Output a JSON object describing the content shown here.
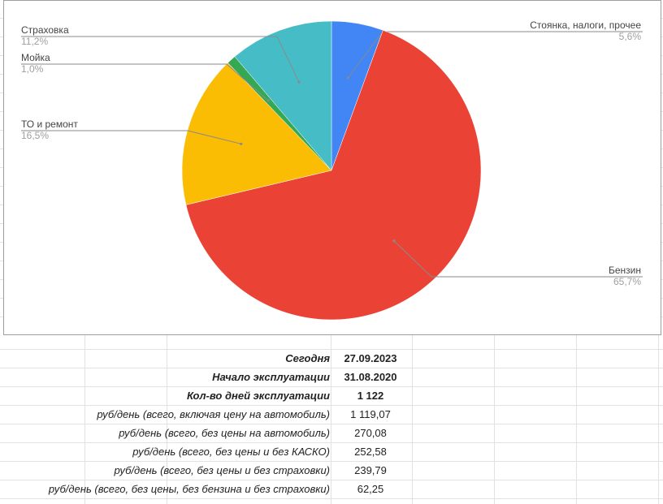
{
  "chart_data": {
    "type": "pie",
    "slices": [
      {
        "label": "Стоянка, налоги, прочее",
        "value": 5.6,
        "pct_text": "5,6%",
        "color": "#4285f4"
      },
      {
        "label": "Бензин",
        "value": 65.7,
        "pct_text": "65,7%",
        "color": "#ea4335"
      },
      {
        "label": "ТО и ремонт",
        "value": 16.5,
        "pct_text": "16,5%",
        "color": "#fbbc04"
      },
      {
        "label": "Мойка",
        "value": 1.0,
        "pct_text": "1,0%",
        "color": "#34a853"
      },
      {
        "label": "Страховка",
        "value": 11.2,
        "pct_text": "11,2%",
        "color": "#46bdc6"
      }
    ],
    "legend": "labels-with-leader-lines"
  },
  "stats": [
    {
      "label": "Сегодня",
      "value": "27.09.2023",
      "bold": true
    },
    {
      "label": "Начало эксплуатации",
      "value": "31.08.2020",
      "bold": true
    },
    {
      "label": "Кол-во дней эксплуатации",
      "value": "1 122",
      "bold": true
    },
    {
      "label": "руб/день (всего, включая цену на автомобиль)",
      "value": "1 119,07",
      "bold": false
    },
    {
      "label": "руб/день (всего, без цены на автомобиль)",
      "value": "270,08",
      "bold": false
    },
    {
      "label": "руб/день (всего, без цены и без КАСКО)",
      "value": "252,58",
      "bold": false
    },
    {
      "label": "руб/день (всего, без цены и без страховки)",
      "value": "239,79",
      "bold": false
    },
    {
      "label": "руб/день (всего, без цены, без бензина и без страховки)",
      "value": "62,25",
      "bold": false
    }
  ]
}
